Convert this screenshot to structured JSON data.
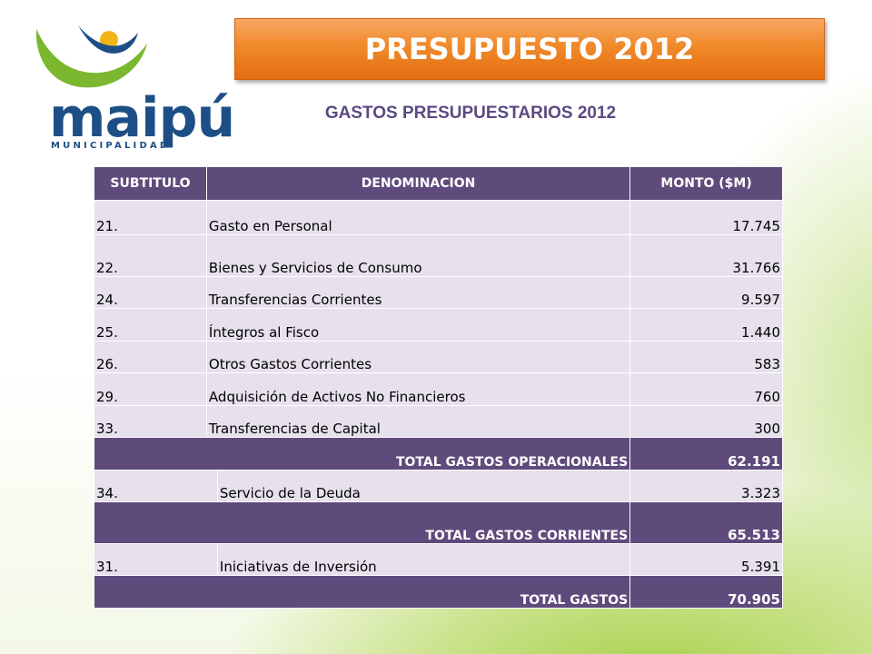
{
  "header": {
    "title": "PRESUPUESTO 2012",
    "subtitle": "GASTOS PRESUPUESTARIOS 2012"
  },
  "logo": {
    "word": "maipú",
    "sub": "MUNICIPALIDAD",
    "colors": {
      "green": "#7cb82f",
      "yellow": "#f2b418",
      "blue": "#1d4f86"
    }
  },
  "table": {
    "headers": {
      "subtitulo": "SUBTITULO",
      "denominacion": "DENOMINACION",
      "monto": "MONTO  ($M)"
    },
    "rows": [
      {
        "code": "21.",
        "name": "Gasto en Personal",
        "amount": "17.745"
      },
      {
        "code": "22.",
        "name": "Bienes y Servicios de Consumo",
        "amount": "31.766"
      },
      {
        "code": "24.",
        "name": "Transferencias  Corrientes",
        "amount": "9.597"
      },
      {
        "code": "25.",
        "name": "Íntegros al Fisco",
        "amount": "1.440"
      },
      {
        "code": "26.",
        "name": "Otros Gastos Corrientes",
        "amount": "583"
      },
      {
        "code": "29.",
        "name": "Adquisición de Activos No Financieros",
        "amount": "760"
      },
      {
        "code": "33.",
        "name": "Transferencias de Capital",
        "amount": "300"
      }
    ],
    "total_operacionales": {
      "label": "TOTAL GASTOS OPERACIONALES",
      "amount": "62.191"
    },
    "deuda": {
      "code": "34.",
      "name": "Servicio de la Deuda",
      "amount": "3.323"
    },
    "total_corrientes": {
      "label": "TOTAL GASTOS CORRIENTES",
      "amount": "65.513"
    },
    "inversion": {
      "code": "31.",
      "name": "Iniciativas de Inversión",
      "amount": "5.391"
    },
    "total_gastos": {
      "label": "TOTAL GASTOS",
      "amount": "70.905"
    }
  },
  "colors": {
    "header_purple": "#5f4a7c",
    "row_lavender": "#e6e1ed",
    "banner_orange": "#f08a2a",
    "subtitle_purple": "#5b4a80"
  }
}
